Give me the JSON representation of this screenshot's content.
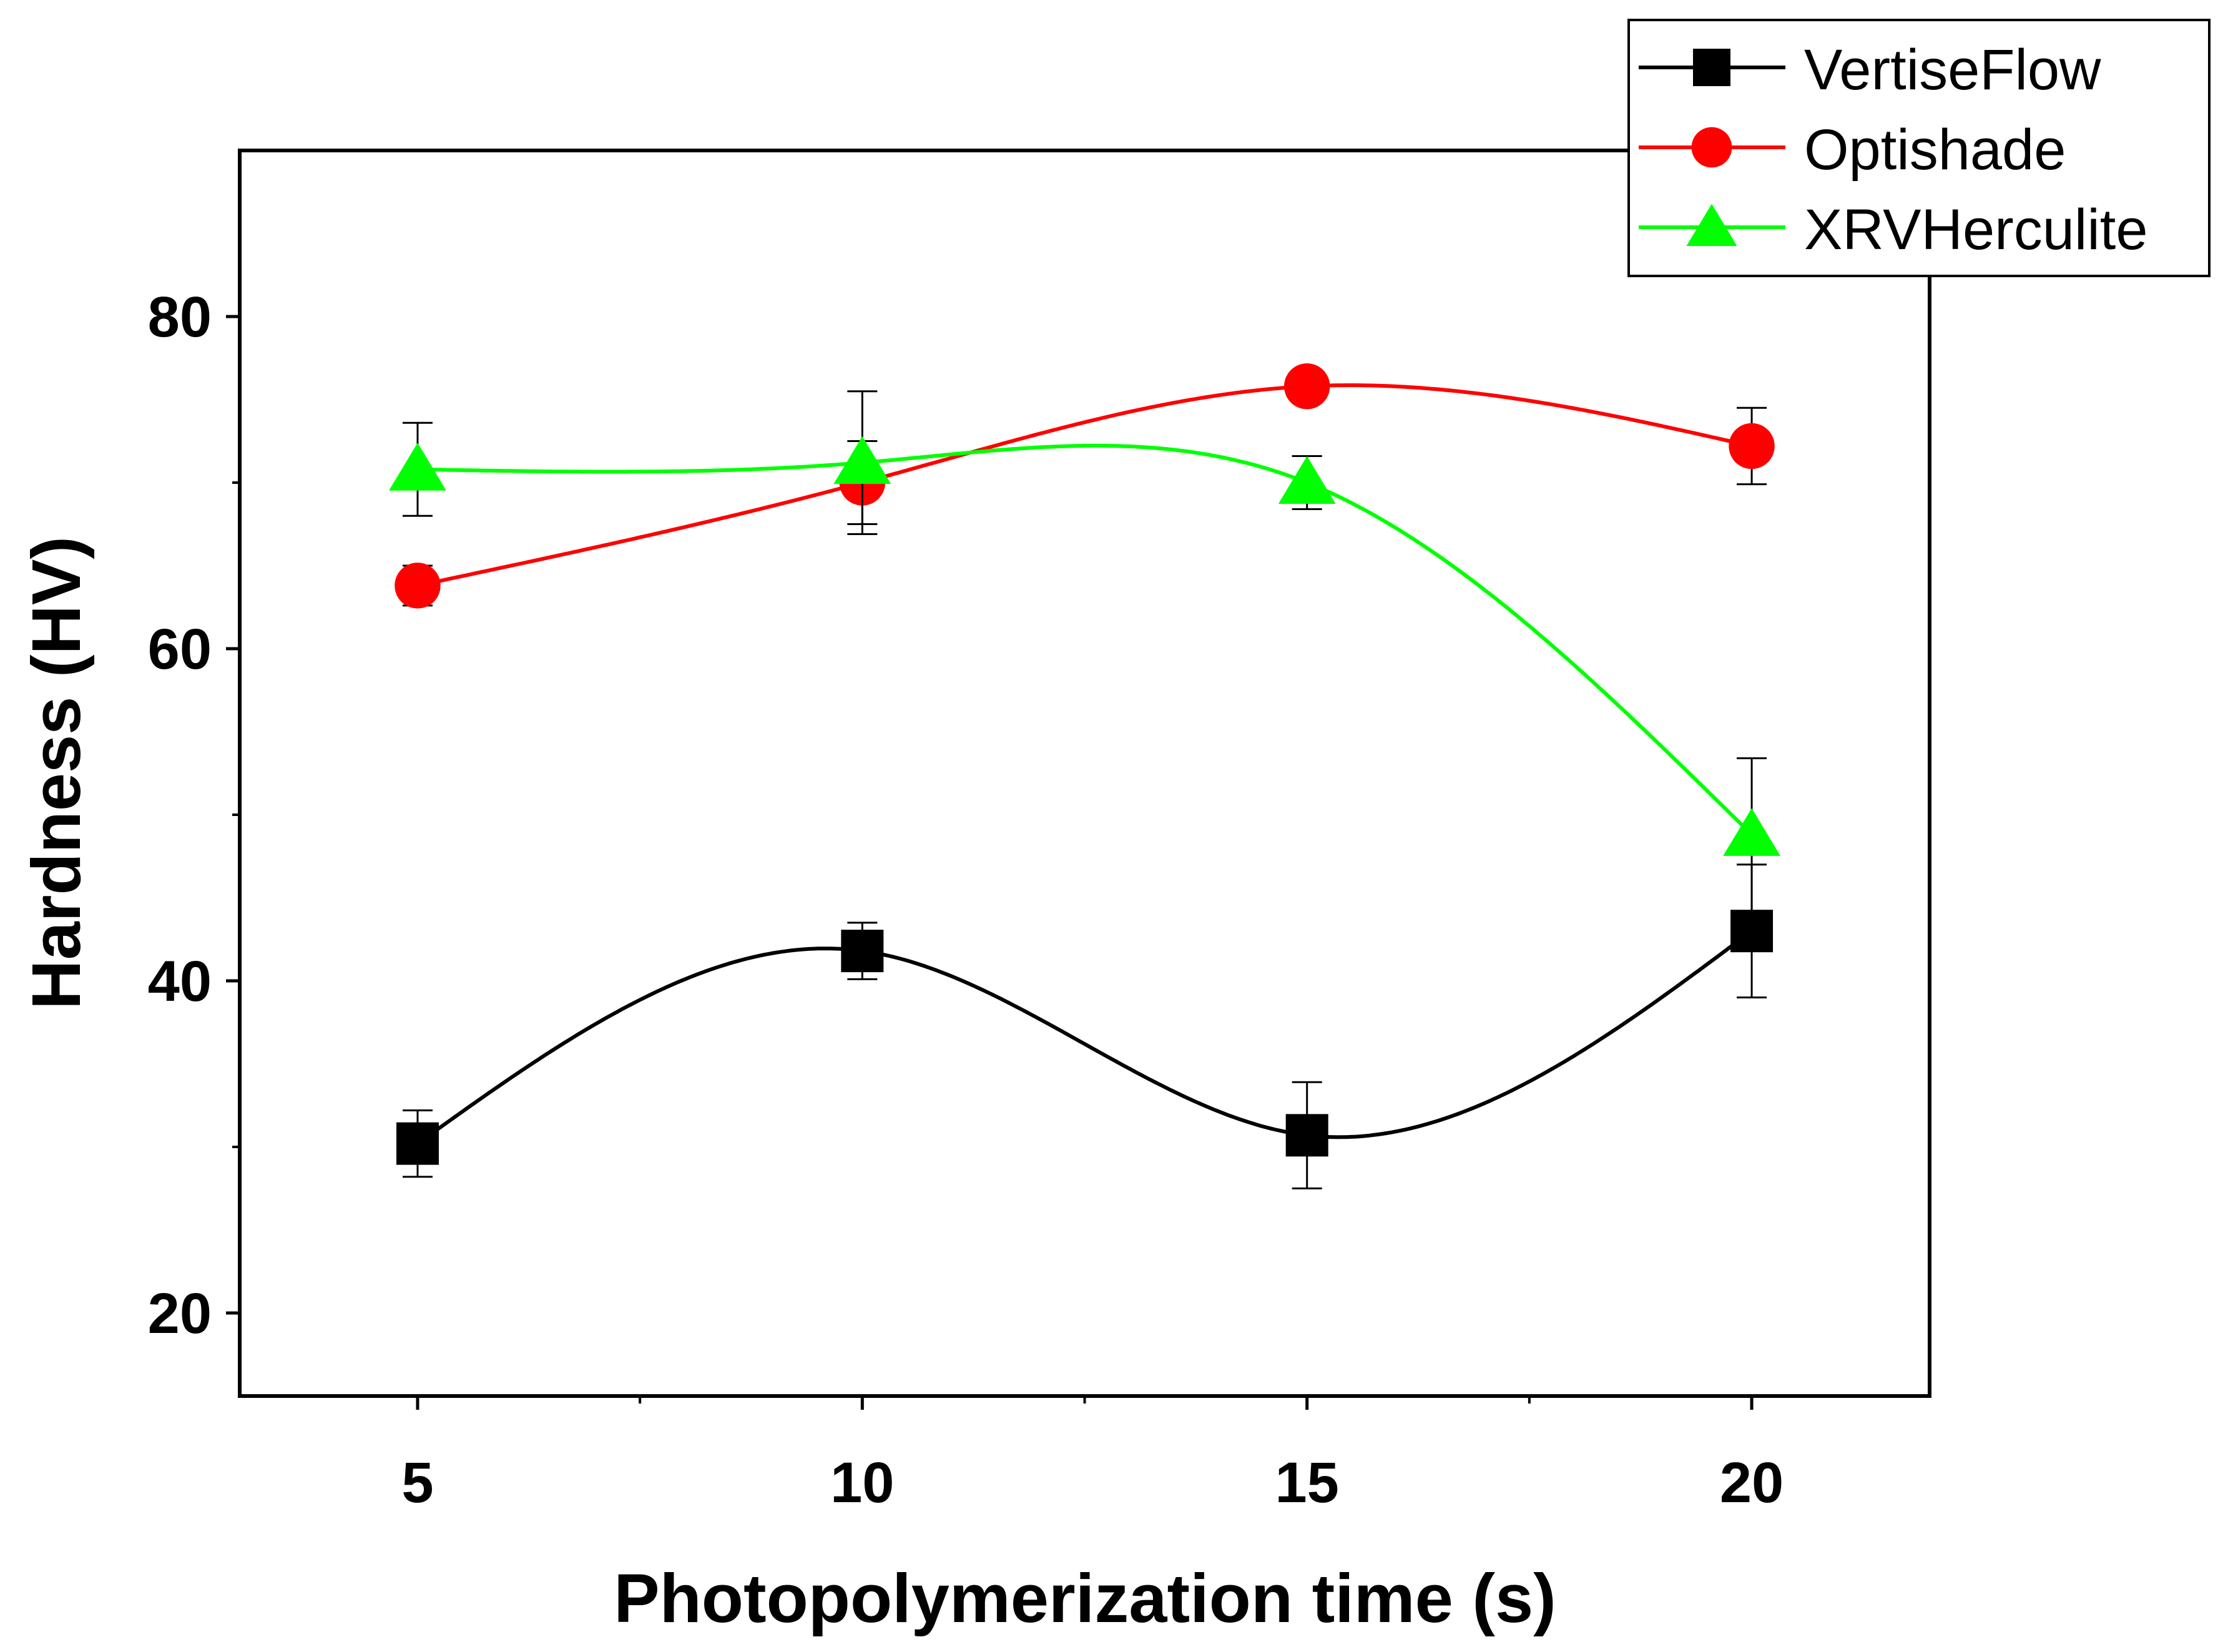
{
  "chart_data": {
    "type": "line",
    "title": "",
    "xlabel": "Photopolymerization time (s)",
    "ylabel": "Hardness (HV)",
    "xlim": [
      3,
      22
    ],
    "ylim": [
      15,
      90
    ],
    "xticks": [
      5,
      10,
      15,
      20
    ],
    "xtick_labels": [
      "5",
      "10",
      "15",
      "20"
    ],
    "yticks": [
      20,
      40,
      60,
      80
    ],
    "ytick_labels": [
      "20",
      "40",
      "60",
      "80"
    ],
    "x_minor_ticks": [
      7.5,
      12.5,
      17.5
    ],
    "y_minor_ticks": [
      30,
      50,
      70
    ],
    "grid": false,
    "legend_position": "top-right",
    "x": [
      5,
      10,
      15,
      20
    ],
    "series": [
      {
        "name": "VertiseFlow",
        "marker": "square",
        "color": "#000000",
        "values": [
          30.2,
          41.8,
          30.7,
          43.0
        ],
        "errors": [
          2.0,
          1.7,
          3.2,
          4.0
        ]
      },
      {
        "name": "Optishade",
        "marker": "circle",
        "color": "#ff0000",
        "values": [
          63.8,
          70.0,
          75.8,
          72.2
        ],
        "errors": [
          1.2,
          2.5,
          1.0,
          2.3
        ]
      },
      {
        "name": "XRVHerculite",
        "marker": "triangle",
        "color": "#00ff00",
        "values": [
          70.8,
          71.2,
          70.0,
          48.8
        ],
        "errors": [
          2.8,
          4.3,
          1.6,
          4.6
        ]
      }
    ]
  }
}
